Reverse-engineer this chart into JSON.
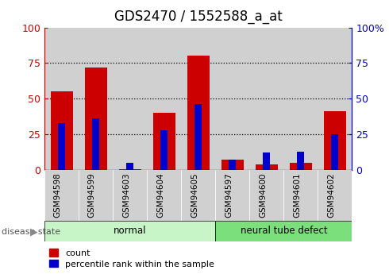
{
  "title": "GDS2470 / 1552588_a_at",
  "samples": [
    "GSM94598",
    "GSM94599",
    "GSM94603",
    "GSM94604",
    "GSM94605",
    "GSM94597",
    "GSM94600",
    "GSM94601",
    "GSM94602"
  ],
  "red_values": [
    55,
    72,
    0.5,
    40,
    80,
    7,
    4,
    5,
    41
  ],
  "blue_values": [
    33,
    36,
    5,
    28,
    46,
    7,
    12,
    13,
    25
  ],
  "groups": [
    {
      "label": "normal",
      "start": 0,
      "end": 5,
      "color": "#c8f5c8"
    },
    {
      "label": "neural tube defect",
      "start": 5,
      "end": 9,
      "color": "#7be07b"
    }
  ],
  "ylim": [
    0,
    100
  ],
  "yticks": [
    0,
    25,
    50,
    75,
    100
  ],
  "red_color": "#cc0000",
  "blue_color": "#0000cc",
  "bar_bg_color": "#d0d0d0",
  "legend_red": "count",
  "legend_blue": "percentile rank within the sample",
  "bar_width": 0.65,
  "right_ytick_labels": [
    "0",
    "25",
    "50",
    "75",
    "100%"
  ],
  "title_fontsize": 12
}
